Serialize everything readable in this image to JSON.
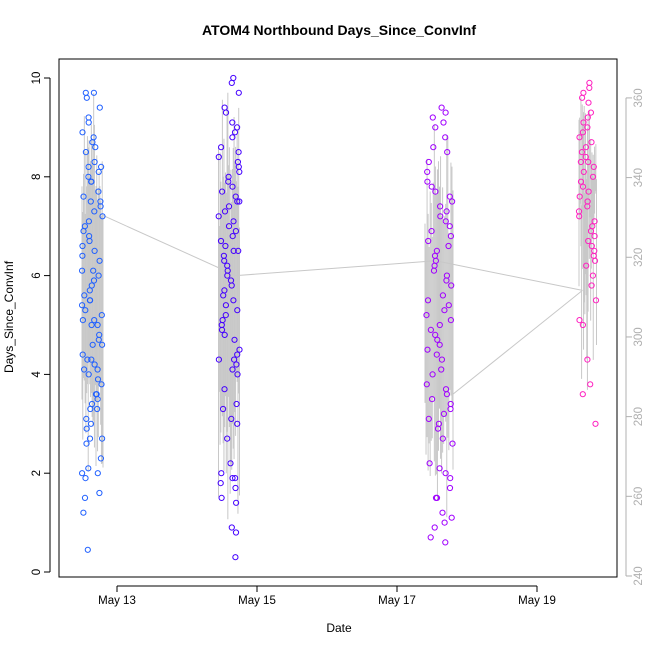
{
  "chart_data": {
    "type": "scatter",
    "title": "ATOM4 Northbound Days_Since_ConvInf",
    "xlabel": "Date",
    "ylabel": "Days_Since_ConvInf",
    "x_ticks": [
      "May 13",
      "May 15",
      "May 17",
      "May 19"
    ],
    "x_ticks_day": [
      13,
      15,
      17,
      19
    ],
    "xlim_day": [
      12.3,
      20.2
    ],
    "ylim": [
      0,
      10
    ],
    "y_ticks": [
      0,
      2,
      4,
      6,
      8,
      10
    ],
    "y2_ticks": [
      240,
      260,
      280,
      300,
      320,
      340,
      360
    ],
    "y2lim": [
      240,
      365
    ],
    "grid": false,
    "legend": "none",
    "colors": {
      "day1": "#2060ff",
      "day2": "#4400ff",
      "day3": "#a000ff",
      "day4": "#ff20c0",
      "trend": "#c8c8c8",
      "axis": "#000000",
      "right_axis": "#b0b0b0"
    },
    "series": [
      {
        "date": "May 12-13",
        "x_range": [
          12.5,
          12.8
        ],
        "color": "#2060ff",
        "values": [
          0.45,
          1.2,
          1.5,
          1.6,
          1.9,
          2.0,
          2.0,
          2.1,
          2.3,
          2.6,
          2.7,
          2.7,
          2.9,
          3.0,
          3.1,
          3.3,
          3.3,
          3.4,
          3.5,
          3.6,
          3.6,
          3.8,
          3.9,
          4.0,
          4.1,
          4.1,
          4.2,
          4.3,
          4.3,
          4.4,
          4.6,
          4.6,
          4.7,
          4.8,
          5.0,
          5.0,
          5.1,
          5.1,
          5.2,
          5.3,
          5.4,
          5.5,
          5.5,
          5.6,
          5.7,
          5.8,
          5.9,
          6.0,
          6.1,
          6.1,
          6.3,
          6.4,
          6.5,
          6.6,
          6.7,
          6.8,
          6.9,
          7.0,
          7.1,
          7.2,
          7.3,
          7.4,
          7.5,
          7.5,
          7.6,
          7.7,
          7.9,
          7.9,
          8.0,
          8.1,
          8.2,
          8.2,
          8.3,
          8.5,
          8.6,
          8.7,
          8.8,
          8.9,
          9.1,
          9.2,
          9.4,
          9.6,
          9.7,
          9.7
        ]
      },
      {
        "date": "May 14-15",
        "x_range": [
          14.45,
          14.75
        ],
        "color": "#4400ff",
        "values": [
          0.3,
          0.8,
          0.9,
          1.4,
          1.5,
          1.7,
          1.8,
          1.9,
          1.9,
          2.0,
          2.2,
          2.7,
          3.0,
          3.1,
          3.3,
          3.4,
          3.7,
          4.0,
          4.1,
          4.2,
          4.3,
          4.3,
          4.4,
          4.5,
          4.7,
          4.8,
          4.9,
          5.0,
          5.1,
          5.2,
          5.3,
          5.4,
          5.5,
          5.6,
          5.7,
          5.8,
          5.9,
          6.0,
          6.1,
          6.2,
          6.3,
          6.4,
          6.5,
          6.5,
          6.6,
          6.7,
          6.8,
          6.9,
          7.0,
          7.1,
          7.2,
          7.3,
          7.4,
          7.5,
          7.5,
          7.6,
          7.7,
          7.8,
          7.9,
          8.0,
          8.1,
          8.2,
          8.3,
          8.4,
          8.5,
          8.6,
          8.8,
          8.9,
          9.0,
          9.1,
          9.3,
          9.4,
          9.7,
          9.9,
          10.0
        ]
      },
      {
        "date": "May 17-18",
        "x_range": [
          17.4,
          17.8
        ],
        "color": "#a000ff",
        "values": [
          0.6,
          0.7,
          0.9,
          1.0,
          1.1,
          1.2,
          1.5,
          1.5,
          1.7,
          1.9,
          2.0,
          2.1,
          2.2,
          2.6,
          2.7,
          2.9,
          3.0,
          3.1,
          3.2,
          3.3,
          3.4,
          3.5,
          3.6,
          3.7,
          3.8,
          4.0,
          4.1,
          4.3,
          4.4,
          4.5,
          4.6,
          4.7,
          4.8,
          4.9,
          5.0,
          5.1,
          5.2,
          5.3,
          5.4,
          5.5,
          5.6,
          5.8,
          5.9,
          6.0,
          6.1,
          6.2,
          6.3,
          6.4,
          6.5,
          6.6,
          6.7,
          6.8,
          6.9,
          7.0,
          7.1,
          7.2,
          7.3,
          7.4,
          7.5,
          7.6,
          7.7,
          7.8,
          7.9,
          8.1,
          8.3,
          8.5,
          8.6,
          8.8,
          9.0,
          9.1,
          9.2,
          9.3,
          9.4
        ]
      },
      {
        "date": "May 19-20",
        "x_range": [
          19.6,
          19.85
        ],
        "color": "#ff20c0",
        "values": [
          3.0,
          3.6,
          3.8,
          4.3,
          5.0,
          5.1,
          5.5,
          5.8,
          6.0,
          6.2,
          6.3,
          6.4,
          6.5,
          6.6,
          6.7,
          6.8,
          6.9,
          7.0,
          7.1,
          7.2,
          7.3,
          7.4,
          7.5,
          7.6,
          7.7,
          7.8,
          7.9,
          8.0,
          8.1,
          8.2,
          8.3,
          8.3,
          8.4,
          8.5,
          8.6,
          8.7,
          8.8,
          8.9,
          9.0,
          9.1,
          9.2,
          9.3,
          9.5,
          9.6,
          9.7,
          9.8,
          9.9
        ]
      }
    ],
    "trend_line": {
      "x": [
        12.75,
        14.7,
        17.55,
        19.65
      ],
      "y": [
        7.25,
        6.0,
        6.3,
        5.7
      ]
    },
    "trend_dips": [
      {
        "x": 17.8,
        "y": 3.6
      },
      {
        "x": 17.6,
        "y": 6.25
      }
    ]
  }
}
